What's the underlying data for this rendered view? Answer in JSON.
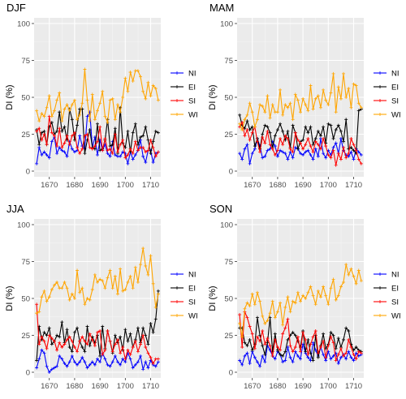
{
  "chart_data": [
    {
      "type": "line",
      "title": "DJF",
      "ylabel": "DI (%)",
      "ylim": [
        0,
        100
      ],
      "yticks": [
        0,
        25,
        50,
        75,
        100
      ],
      "xlim": [
        1664,
        1714
      ],
      "xticks": [
        1670,
        1680,
        1690,
        1700,
        1710
      ],
      "grid": true,
      "legend": "right",
      "x": [
        1665,
        1666,
        1667,
        1668,
        1669,
        1670,
        1671,
        1672,
        1673,
        1674,
        1675,
        1676,
        1677,
        1678,
        1679,
        1680,
        1681,
        1682,
        1683,
        1684,
        1685,
        1686,
        1687,
        1688,
        1689,
        1690,
        1691,
        1692,
        1693,
        1694,
        1695,
        1696,
        1697,
        1698,
        1699,
        1700,
        1701,
        1702,
        1703,
        1704,
        1705,
        1706,
        1707,
        1708,
        1709,
        1710,
        1711,
        1712,
        1713
      ],
      "series": [
        {
          "name": "NI",
          "color": "#0000ff",
          "values": [
            5,
            16,
            11,
            13,
            11,
            9,
            20,
            23,
            12,
            16,
            14,
            13,
            10,
            20,
            15,
            13,
            14,
            24,
            17,
            15,
            37,
            40,
            16,
            23,
            11,
            21,
            14,
            18,
            12,
            10,
            20,
            11,
            10,
            10,
            13,
            12,
            5,
            13,
            8,
            11,
            14,
            21,
            10,
            6,
            14,
            14,
            6,
            12,
            13
          ]
        },
        {
          "name": "EI",
          "color": "#000000",
          "values": [
            28,
            18,
            26,
            27,
            18,
            30,
            33,
            25,
            27,
            40,
            27,
            30,
            21,
            42,
            35,
            21,
            31,
            42,
            42,
            12,
            21,
            28,
            16,
            15,
            32,
            14,
            15,
            21,
            35,
            17,
            18,
            29,
            12,
            43,
            19,
            16,
            27,
            13,
            26,
            32,
            18,
            23,
            24,
            30,
            21,
            12,
            20,
            27,
            26
          ]
        },
        {
          "name": "SI",
          "color": "#ff0000",
          "values": [
            27,
            29,
            21,
            25,
            18,
            37,
            26,
            24,
            17,
            29,
            16,
            19,
            24,
            18,
            24,
            26,
            16,
            12,
            15,
            24,
            25,
            16,
            15,
            17,
            20,
            30,
            14,
            22,
            14,
            15,
            12,
            25,
            13,
            18,
            21,
            9,
            11,
            15,
            12,
            20,
            14,
            16,
            16,
            13,
            14,
            21,
            16,
            10,
            13
          ]
        },
        {
          "name": "WI",
          "color": "#ffa500",
          "values": [
            41,
            34,
            39,
            37,
            43,
            51,
            37,
            41,
            48,
            53,
            34,
            42,
            45,
            41,
            45,
            48,
            35,
            38,
            46,
            69,
            48,
            34,
            52,
            35,
            41,
            46,
            54,
            37,
            33,
            48,
            49,
            35,
            45,
            40,
            50,
            63,
            54,
            67,
            61,
            68,
            68,
            64,
            54,
            49,
            60,
            51,
            58,
            56,
            48
          ]
        }
      ]
    },
    {
      "type": "line",
      "title": "MAM",
      "ylabel": "DI (%)",
      "ylim": [
        0,
        100
      ],
      "yticks": [
        0,
        25,
        50,
        75,
        100
      ],
      "xlim": [
        1664,
        1714
      ],
      "xticks": [
        1670,
        1680,
        1690,
        1700,
        1710
      ],
      "grid": true,
      "legend": "right",
      "x": [
        1665,
        1666,
        1667,
        1668,
        1669,
        1670,
        1671,
        1672,
        1673,
        1674,
        1675,
        1676,
        1677,
        1678,
        1679,
        1680,
        1681,
        1682,
        1683,
        1684,
        1685,
        1686,
        1687,
        1688,
        1689,
        1690,
        1691,
        1692,
        1693,
        1694,
        1695,
        1696,
        1697,
        1698,
        1699,
        1700,
        1701,
        1702,
        1703,
        1704,
        1705,
        1706,
        1707,
        1708,
        1709,
        1710,
        1711,
        1712,
        1713
      ],
      "series": [
        {
          "name": "NI",
          "color": "#0000ff",
          "values": [
            12,
            8,
            15,
            18,
            5,
            12,
            15,
            22,
            17,
            9,
            10,
            14,
            15,
            20,
            17,
            10,
            14,
            13,
            12,
            8,
            13,
            9,
            16,
            15,
            12,
            11,
            13,
            14,
            11,
            8,
            15,
            10,
            22,
            12,
            9,
            14,
            11,
            16,
            19,
            12,
            22,
            14,
            11,
            10,
            13,
            8,
            15,
            13,
            11
          ]
        },
        {
          "name": "EI",
          "color": "#000000",
          "values": [
            38,
            31,
            29,
            34,
            28,
            30,
            17,
            22,
            15,
            25,
            31,
            30,
            26,
            16,
            24,
            28,
            32,
            27,
            21,
            27,
            16,
            31,
            26,
            15,
            20,
            21,
            30,
            26,
            30,
            18,
            22,
            27,
            24,
            30,
            19,
            32,
            31,
            22,
            28,
            31,
            27,
            20,
            35,
            15,
            16,
            14,
            12,
            41,
            42
          ]
        },
        {
          "name": "SI",
          "color": "#ff0000",
          "values": [
            30,
            33,
            24,
            28,
            21,
            26,
            30,
            20,
            13,
            23,
            19,
            27,
            18,
            15,
            11,
            14,
            22,
            18,
            24,
            22,
            15,
            13,
            26,
            21,
            19,
            15,
            18,
            22,
            17,
            13,
            20,
            18,
            15,
            22,
            17,
            11,
            9,
            14,
            4,
            12,
            8,
            16,
            9,
            12,
            22,
            18,
            14,
            8,
            5
          ]
        },
        {
          "name": "WI",
          "color": "#ffa500",
          "values": [
            32,
            28,
            35,
            38,
            46,
            40,
            30,
            35,
            45,
            44,
            40,
            51,
            36,
            45,
            40,
            40,
            55,
            38,
            45,
            43,
            46,
            35,
            52,
            48,
            40,
            49,
            45,
            41,
            58,
            42,
            49,
            51,
            43,
            55,
            48,
            45,
            53,
            66,
            40,
            57,
            49,
            66,
            50,
            56,
            43,
            59,
            58,
            46,
            43
          ]
        }
      ]
    },
    {
      "type": "line",
      "title": "JJA",
      "ylabel": "DI (%)",
      "ylim": [
        0,
        100
      ],
      "yticks": [
        0,
        25,
        50,
        75,
        100
      ],
      "xlim": [
        1664,
        1714
      ],
      "xticks": [
        1670,
        1680,
        1690,
        1700,
        1710
      ],
      "grid": true,
      "legend": "right",
      "x": [
        1665,
        1666,
        1667,
        1668,
        1669,
        1670,
        1671,
        1672,
        1673,
        1674,
        1675,
        1676,
        1677,
        1678,
        1679,
        1680,
        1681,
        1682,
        1683,
        1684,
        1685,
        1686,
        1687,
        1688,
        1689,
        1690,
        1691,
        1692,
        1693,
        1694,
        1695,
        1696,
        1697,
        1698,
        1699,
        1700,
        1701,
        1702,
        1703,
        1704,
        1705,
        1706,
        1707,
        1708,
        1709,
        1710,
        1711,
        1712,
        1713
      ],
      "series": [
        {
          "name": "NI",
          "color": "#0000ff",
          "values": [
            3,
            9,
            15,
            13,
            4,
            0,
            2,
            3,
            4,
            11,
            9,
            6,
            4,
            7,
            11,
            7,
            5,
            7,
            10,
            7,
            3,
            5,
            7,
            5,
            9,
            7,
            13,
            9,
            5,
            4,
            7,
            11,
            7,
            5,
            9,
            7,
            13,
            9,
            3,
            5,
            7,
            11,
            2,
            7,
            3,
            8,
            5,
            4,
            7
          ]
        },
        {
          "name": "EI",
          "color": "#000000",
          "values": [
            8,
            31,
            22,
            27,
            25,
            30,
            19,
            21,
            25,
            24,
            34,
            20,
            29,
            17,
            14,
            27,
            30,
            21,
            17,
            14,
            31,
            18,
            24,
            20,
            25,
            11,
            31,
            16,
            28,
            21,
            13,
            25,
            20,
            24,
            15,
            29,
            21,
            26,
            17,
            22,
            30,
            20,
            30,
            25,
            19,
            33,
            27,
            36,
            55
          ]
        },
        {
          "name": "SI",
          "color": "#ff0000",
          "values": [
            46,
            19,
            24,
            21,
            16,
            25,
            23,
            21,
            15,
            20,
            17,
            19,
            22,
            24,
            21,
            17,
            14,
            21,
            24,
            21,
            19,
            26,
            22,
            18,
            27,
            28,
            12,
            15,
            28,
            21,
            14,
            19,
            22,
            13,
            17,
            9,
            15,
            12,
            17,
            21,
            14,
            19,
            25,
            17,
            13,
            10,
            6,
            9,
            9
          ]
        },
        {
          "name": "WI",
          "color": "#ffa500",
          "values": [
            40,
            41,
            51,
            55,
            48,
            51,
            56,
            59,
            61,
            57,
            57,
            61,
            57,
            49,
            53,
            50,
            69,
            54,
            57,
            46,
            50,
            49,
            56,
            66,
            61,
            63,
            62,
            57,
            64,
            69,
            57,
            65,
            53,
            70,
            55,
            56,
            61,
            65,
            57,
            71,
            61,
            73,
            84,
            72,
            66,
            79,
            60,
            44,
            53
          ]
        }
      ]
    },
    {
      "type": "line",
      "title": "SON",
      "ylabel": "DI (%)",
      "ylim": [
        0,
        100
      ],
      "yticks": [
        0,
        25,
        50,
        75,
        100
      ],
      "xlim": [
        1664,
        1714
      ],
      "xticks": [
        1670,
        1680,
        1690,
        1700,
        1710
      ],
      "grid": true,
      "legend": "right",
      "x": [
        1665,
        1666,
        1667,
        1668,
        1669,
        1670,
        1671,
        1672,
        1673,
        1674,
        1675,
        1676,
        1677,
        1678,
        1679,
        1680,
        1681,
        1682,
        1683,
        1684,
        1685,
        1686,
        1687,
        1688,
        1689,
        1690,
        1691,
        1692,
        1693,
        1694,
        1695,
        1696,
        1697,
        1698,
        1699,
        1700,
        1701,
        1702,
        1703,
        1704,
        1705,
        1706,
        1707,
        1708,
        1709,
        1710,
        1711,
        1712,
        1713
      ],
      "series": [
        {
          "name": "NI",
          "color": "#0000ff",
          "values": [
            8,
            5,
            11,
            13,
            6,
            14,
            10,
            7,
            4,
            11,
            7,
            18,
            15,
            11,
            9,
            14,
            12,
            7,
            8,
            17,
            10,
            7,
            14,
            11,
            9,
            19,
            13,
            10,
            8,
            20,
            15,
            11,
            17,
            12,
            8,
            14,
            9,
            11,
            13,
            6,
            10,
            12,
            9,
            14,
            10,
            8,
            13,
            11,
            12
          ]
        },
        {
          "name": "EI",
          "color": "#000000",
          "values": [
            30,
            30,
            20,
            18,
            22,
            15,
            19,
            37,
            25,
            18,
            12,
            20,
            37,
            14,
            26,
            15,
            12,
            11,
            14,
            22,
            25,
            27,
            25,
            21,
            17,
            28,
            14,
            22,
            13,
            8,
            25,
            10,
            18,
            26,
            16,
            19,
            27,
            25,
            16,
            23,
            17,
            22,
            30,
            28,
            19,
            15,
            17,
            15,
            14
          ]
        },
        {
          "name": "SI",
          "color": "#ff0000",
          "values": [
            39,
            17,
            41,
            37,
            31,
            26,
            16,
            24,
            21,
            28,
            19,
            23,
            18,
            11,
            22,
            17,
            15,
            26,
            30,
            36,
            18,
            14,
            17,
            24,
            14,
            27,
            22,
            12,
            19,
            24,
            28,
            13,
            17,
            21,
            10,
            18,
            24,
            20,
            8,
            12,
            16,
            11,
            13,
            22,
            17,
            12,
            9,
            14,
            13
          ]
        },
        {
          "name": "WI",
          "color": "#ffa500",
          "values": [
            33,
            24,
            43,
            47,
            45,
            53,
            46,
            54,
            48,
            38,
            33,
            35,
            40,
            48,
            37,
            41,
            47,
            32,
            44,
            51,
            41,
            48,
            47,
            54,
            48,
            52,
            50,
            54,
            58,
            52,
            46,
            55,
            51,
            58,
            52,
            46,
            57,
            63,
            49,
            52,
            58,
            61,
            73,
            66,
            70,
            65,
            60,
            69,
            62
          ]
        }
      ]
    }
  ]
}
